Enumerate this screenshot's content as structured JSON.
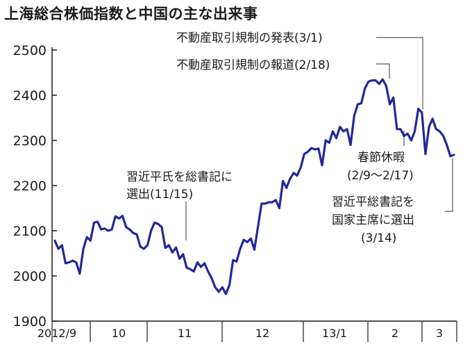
{
  "chart_data": {
    "type": "line",
    "title": "上海総合株価指数と中国の主な出来事",
    "xlabel": "",
    "ylabel": "",
    "ylim": [
      1900,
      2500
    ],
    "yticks": [
      1900,
      2000,
      2100,
      2200,
      2300,
      2400,
      2500
    ],
    "xticks": [
      "2012/9",
      "10",
      "11",
      "12",
      "13/1",
      "2",
      "3"
    ],
    "grid": false,
    "series": [
      {
        "values": [
          2078,
          2060,
          2068,
          2028,
          2030,
          2034,
          2030,
          2005,
          2060,
          2086,
          2078,
          2118,
          2120,
          2103,
          2105,
          2100,
          2103,
          2132,
          2127,
          2133,
          2108,
          2103,
          2095,
          2092,
          2065,
          2060,
          2068,
          2100,
          2118,
          2115,
          2108,
          2062,
          2068,
          2052,
          2063,
          2038,
          2048,
          2018,
          2015,
          2010,
          2030,
          2020,
          2028,
          2010,
          1995,
          1975,
          1965,
          1975,
          1960,
          1980,
          2035,
          2032,
          2060,
          2080,
          2075,
          2083,
          2058,
          2108,
          2160,
          2160,
          2163,
          2163,
          2168,
          2150,
          2210,
          2195,
          2215,
          2228,
          2222,
          2240,
          2270,
          2275,
          2283,
          2280,
          2282,
          2245,
          2300,
          2295,
          2320,
          2305,
          2330,
          2320,
          2325,
          2290,
          2355,
          2380,
          2382,
          2415,
          2430,
          2433,
          2433,
          2425,
          2435,
          2420,
          2380,
          2395,
          2325,
          2325,
          2310,
          2315,
          2300,
          2320,
          2370,
          2362,
          2270,
          2330,
          2348,
          2325,
          2320,
          2310,
          2290,
          2265,
          2268
        ]
      }
    ]
  },
  "annotations": {
    "event1": "不動産取引規制の発表(3/1)",
    "event2": "不動産取引規制の報道(2/18)",
    "spring_1": "春節休暇",
    "spring_2": "(2/9〜2/17)",
    "party_1": "習近平氏を総書記に",
    "party_2": "選出(11/15)",
    "state_1": "習近平総書記を",
    "state_2": "国家主席に選出",
    "state_3": "(3/14)"
  },
  "colors": {
    "line": "#23289a",
    "axis": "#1a1a1a",
    "leader": "#555555"
  }
}
